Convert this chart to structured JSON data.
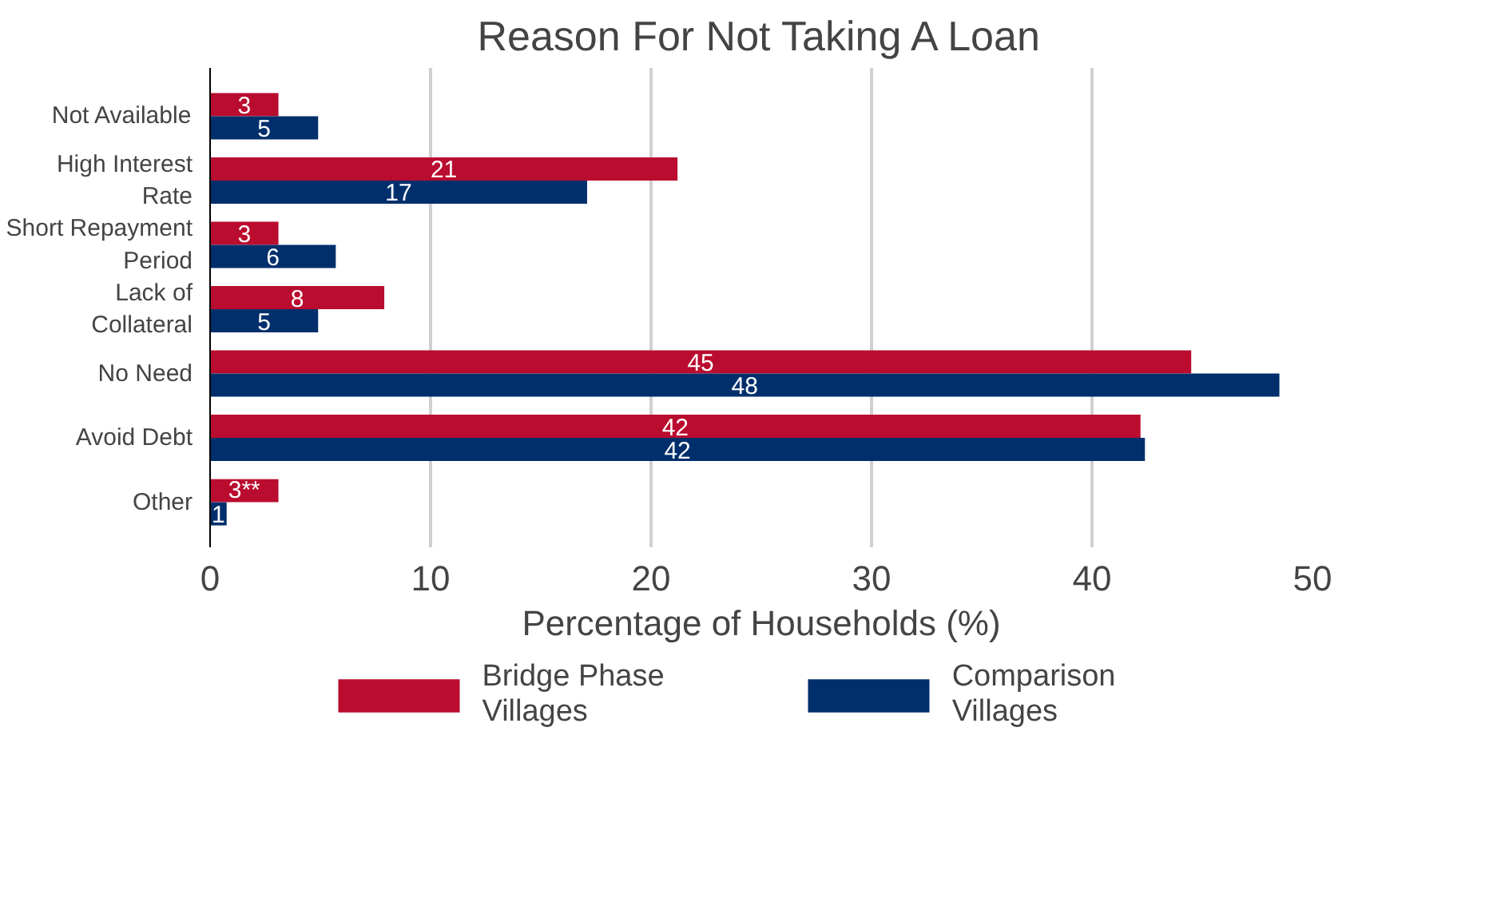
{
  "chart_data": {
    "type": "bar",
    "orientation": "horizontal",
    "title": "Reason For Not Taking A Loan",
    "xlabel": "Percentage of Households (%)",
    "categories": [
      "Not Available",
      "High Interest Rate",
      "Short Repayment Period",
      "Lack of Collateral",
      "No Need",
      "Avoid Debt",
      "Other"
    ],
    "series": [
      {
        "name": "Bridge Phase Villages",
        "color": "#ba0c2f",
        "values": [
          3.1,
          21.2,
          3.1,
          7.9,
          44.5,
          42.2,
          3.1
        ],
        "value_labels": [
          "3",
          "21",
          "3",
          "8",
          "45",
          "42",
          "3**"
        ]
      },
      {
        "name": "Comparison Villages",
        "color": "#002f6c",
        "values": [
          4.9,
          17.1,
          5.7,
          4.9,
          48.5,
          42.4,
          0.75
        ],
        "value_labels": [
          "5",
          "17",
          "6",
          "5",
          "48",
          "42",
          "1"
        ]
      }
    ],
    "xlim": [
      0,
      50
    ],
    "xticks": [
      0,
      10,
      20,
      30,
      40,
      50
    ],
    "grid": "x",
    "legend": "bottom"
  }
}
